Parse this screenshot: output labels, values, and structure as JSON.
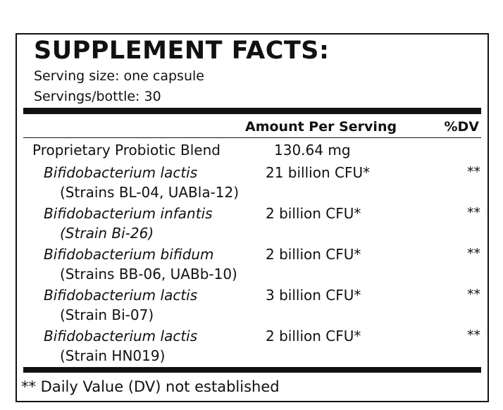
{
  "title": "SUPPLEMENT FACTS:",
  "serving_size": "Serving size: one capsule",
  "servings_per_bottle": "Servings/bottle: 30",
  "columns": {
    "amount": "Amount Per Serving",
    "dv": "%DV"
  },
  "blend": {
    "name": "Proprietary Probiotic Blend",
    "amount": "130.64 mg"
  },
  "ingredients": [
    {
      "name": "Bifidobacterium lactis",
      "strain": "(Strains BL-04, UABla-12)",
      "strain_italic": false,
      "amount": "21 billion CFU*",
      "dv": "**"
    },
    {
      "name": "Bifidobacterium infantis",
      "strain": "(Strain Bi-26)",
      "strain_italic": true,
      "amount": "2 billion CFU*",
      "dv": "**"
    },
    {
      "name": "Bifidobacterium bifidum",
      "strain": "(Strains BB-06, UABb-10)",
      "strain_italic": false,
      "amount": "2 billion CFU*",
      "dv": "**"
    },
    {
      "name": "Bifidobacterium lactis",
      "strain": "(Strain Bi-07)",
      "strain_italic": false,
      "amount": "3 billion CFU*",
      "dv": "**"
    },
    {
      "name": "Bifidobacterium lactis",
      "strain": "(Strain HN019)",
      "strain_italic": false,
      "amount": "2 billion CFU*",
      "dv": "**"
    }
  ],
  "footnote": "** Daily Value (DV) not established"
}
